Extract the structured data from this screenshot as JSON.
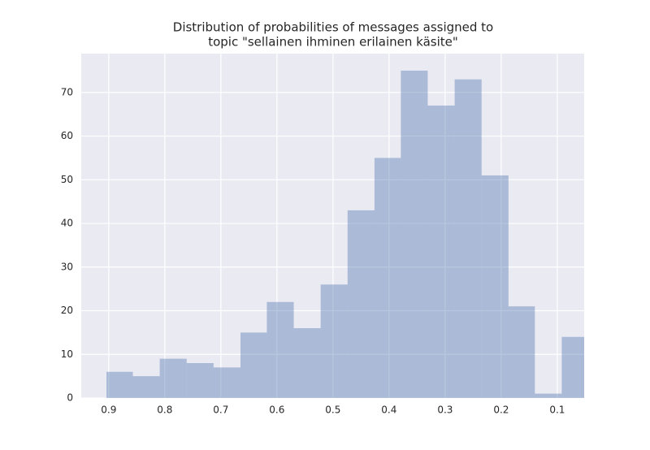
{
  "chart_data": {
    "type": "histogram",
    "title": [
      "Distribution of probabilities of messages assigned to",
      "topic \"sellainen ihminen erilainen käsite\""
    ],
    "bins": [
      0.904,
      0.857,
      0.809,
      0.761,
      0.713,
      0.665,
      0.618,
      0.57,
      0.522,
      0.474,
      0.426,
      0.379,
      0.331,
      0.283,
      0.235,
      0.187,
      0.14,
      0.092,
      0.044
    ],
    "values": [
      6,
      5,
      9,
      8,
      7,
      15,
      22,
      16,
      26,
      43,
      55,
      75,
      67,
      73,
      51,
      21,
      1,
      14
    ],
    "color": "#4c72b0",
    "xlim": [
      0.949,
      0.052
    ],
    "xticks": [
      0.9,
      0.8,
      0.7,
      0.6,
      0.5,
      0.4,
      0.3,
      0.2,
      0.1
    ],
    "ylim": [
      0,
      78.9
    ],
    "yticks": [
      0,
      10,
      20,
      30,
      40,
      50,
      60,
      70
    ],
    "grid": true
  }
}
